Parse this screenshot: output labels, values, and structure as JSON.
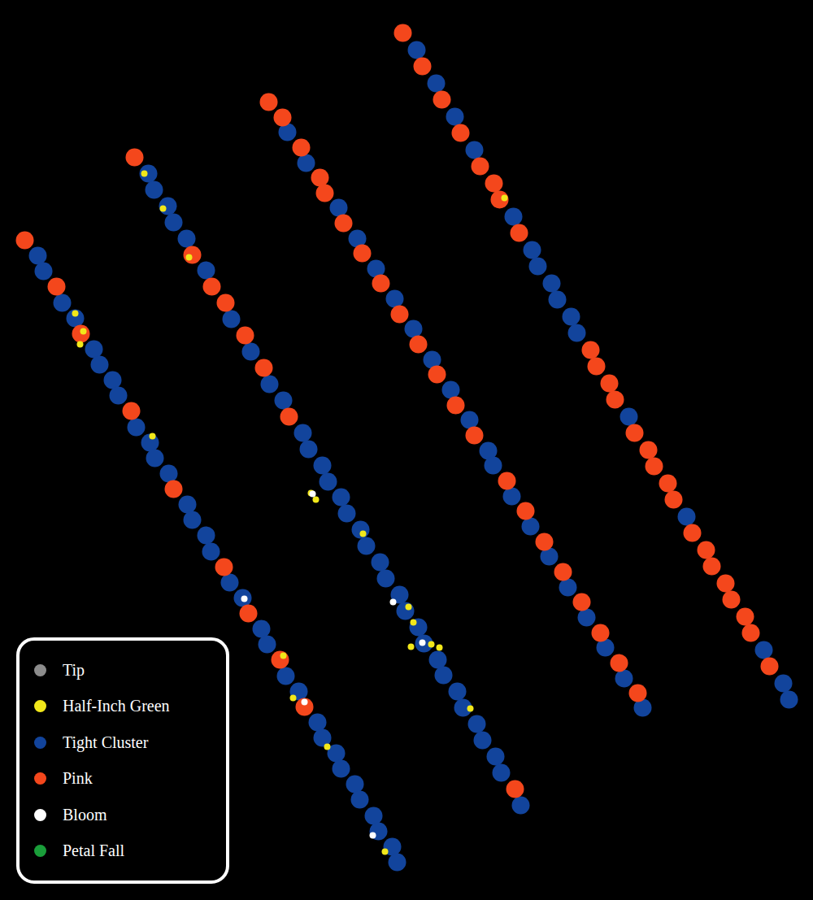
{
  "chart_data": {
    "type": "scatter",
    "tick_labels": false,
    "legend": "bottom-left",
    "xlim": [
      0,
      1000
    ],
    "ylim": [
      1107,
      0
    ],
    "series": [
      {
        "name": "Tip",
        "color": "#8c8c8c",
        "marker": "circle",
        "x": [],
        "y": []
      },
      {
        "name": "Half-Inch Green",
        "color": "#f2e81a",
        "marker": "dot",
        "x": [
          92,
          102,
          98,
          187,
          348,
          360,
          402,
          473,
          177,
          200,
          232,
          382,
          388,
          446,
          502,
          508,
          530,
          540,
          505,
          578,
          620
        ],
        "y": [
          385,
          407,
          423,
          536,
          806,
          858,
          918,
          1047,
          213,
          256,
          316,
          606,
          614,
          656,
          746,
          765,
          792,
          796,
          795,
          871,
          243
        ]
      },
      {
        "name": "Tight Cluster",
        "color": "#12449c",
        "marker": "circle",
        "x": [
          46,
          53,
          76,
          92,
          115,
          122,
          138,
          145,
          167,
          184,
          190,
          207,
          230,
          236,
          253,
          259,
          282,
          298,
          321,
          328,
          351,
          367,
          390,
          396,
          413,
          419,
          436,
          442,
          459,
          465,
          482,
          488,
          182,
          189,
          206,
          213,
          229,
          253,
          284,
          308,
          331,
          348,
          372,
          379,
          396,
          403,
          419,
          426,
          443,
          450,
          467,
          474,
          491,
          498,
          514,
          521,
          538,
          545,
          562,
          569,
          586,
          593,
          609,
          616,
          640,
          353,
          376,
          416,
          439,
          462,
          485,
          508,
          531,
          554,
          577,
          600,
          606,
          629,
          652,
          675,
          698,
          721,
          744,
          767,
          790,
          512,
          536,
          559,
          583,
          631,
          654,
          661,
          678,
          685,
          702,
          709,
          773,
          844,
          939,
          963,
          970
        ],
        "y": [
          314,
          333,
          372,
          391,
          429,
          448,
          467,
          486,
          525,
          544,
          563,
          582,
          620,
          639,
          658,
          678,
          716,
          735,
          773,
          792,
          831,
          850,
          888,
          907,
          926,
          945,
          964,
          983,
          1003,
          1022,
          1041,
          1060,
          213,
          233,
          253,
          273,
          293,
          332,
          392,
          432,
          472,
          492,
          532,
          552,
          572,
          592,
          611,
          631,
          651,
          671,
          691,
          711,
          731,
          751,
          771,
          791,
          811,
          830,
          850,
          870,
          890,
          910,
          930,
          950,
          990,
          162,
          200,
          255,
          293,
          330,
          367,
          404,
          442,
          479,
          516,
          554,
          572,
          610,
          647,
          684,
          722,
          759,
          796,
          834,
          870,
          61,
          102,
          143,
          184,
          266,
          307,
          327,
          348,
          368,
          389,
          409,
          512,
          635,
          799,
          840,
          860
        ]
      },
      {
        "name": "Pink",
        "color": "#f4471c",
        "marker": "circle",
        "x": [
          30,
          69,
          99,
          161,
          213,
          275,
          305,
          344,
          374,
          165,
          236,
          260,
          277,
          301,
          324,
          355,
          633,
          330,
          347,
          370,
          393,
          399,
          422,
          445,
          468,
          491,
          514,
          537,
          560,
          583,
          623,
          646,
          669,
          692,
          715,
          738,
          761,
          784,
          495,
          519,
          543,
          566,
          590,
          607,
          614,
          638,
          726,
          733,
          749,
          756,
          780,
          797,
          804,
          821,
          828,
          851,
          868,
          875,
          892,
          899,
          916,
          923,
          946
        ],
        "y": [
          295,
          352,
          410,
          505,
          601,
          697,
          754,
          811,
          869,
          193,
          313,
          352,
          372,
          412,
          452,
          512,
          970,
          125,
          144,
          181,
          218,
          237,
          274,
          311,
          348,
          386,
          423,
          460,
          498,
          535,
          591,
          628,
          666,
          703,
          740,
          778,
          815,
          852,
          40,
          81,
          122,
          163,
          204,
          225,
          245,
          286,
          430,
          450,
          471,
          491,
          532,
          553,
          573,
          594,
          614,
          655,
          676,
          696,
          717,
          737,
          758,
          778,
          819
        ]
      },
      {
        "name": "Bloom",
        "color": "#ffffff",
        "marker": "dot",
        "x": [
          300,
          374,
          458,
          384,
          483,
          519
        ],
        "y": [
          736,
          863,
          1027,
          607,
          740,
          790
        ]
      },
      {
        "name": "Petal Fall",
        "color": "#1a9e3a",
        "marker": "circle",
        "x": [],
        "y": []
      }
    ]
  }
}
